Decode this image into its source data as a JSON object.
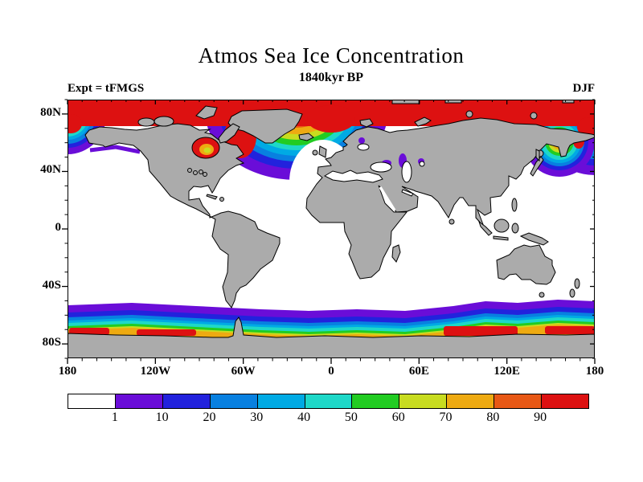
{
  "header": {
    "title": "Atmos Sea Ice Concentration",
    "subtitle": "1840kyr BP",
    "experiment_label": "Expt = tFMGS",
    "season_label": "DJF"
  },
  "chart_data": {
    "type": "heatmap",
    "subtype": "filled-contour world map, equirectangular projection",
    "title": "Atmos Sea Ice Concentration",
    "subtitle": "1840kyr BP",
    "experiment": "Expt = tFMGS",
    "season": "DJF",
    "variable": "sea ice concentration",
    "x_axis": {
      "tick_labels": [
        "180",
        "120W",
        "60W",
        "0",
        "60E",
        "120E",
        "180"
      ],
      "tick_lons": [
        -180,
        -120,
        -60,
        0,
        60,
        120,
        180
      ],
      "minor_step_deg": 10,
      "range_deg": [
        -180,
        180
      ]
    },
    "y_axis": {
      "tick_labels": [
        "80N",
        "40N",
        "0",
        "40S",
        "80S"
      ],
      "tick_lats": [
        80,
        40,
        0,
        -40,
        -80
      ],
      "minor_step_deg": 10,
      "range_deg": [
        -90,
        90
      ]
    },
    "colorbar": {
      "levels": [
        1,
        10,
        20,
        30,
        40,
        50,
        60,
        70,
        80,
        90
      ],
      "label_values": [
        "1",
        "10",
        "20",
        "30",
        "40",
        "50",
        "60",
        "70",
        "80",
        "90"
      ],
      "colors": [
        "#ffffff",
        "#6a0dd8",
        "#2222dd",
        "#0880e0",
        "#00aae4",
        "#1ed8c8",
        "#22cc22",
        "#c8dc20",
        "#eeaa11",
        "#e85815",
        "#dd1111"
      ]
    },
    "map_colors": {
      "land": "#ababab",
      "coastline": "#000000",
      "ocean": "#ffffff"
    },
    "regions": [
      {
        "name": "Arctic Ocean ice cap",
        "extent": "~68N-90N all longitudes",
        "value": ">90"
      },
      {
        "name": "Hudson Bay",
        "value": "60->90, lower (60-70) in its center"
      },
      {
        "name": "Labrador Sea / Davis Strait marginal ice zone",
        "value": "90->1 gradient seaward"
      },
      {
        "name": "Greenland-Iceland-Norwegian Seas marginal ice zone",
        "value": "90->1 gradient seaward"
      },
      {
        "name": "Bering Sea marginal ice zone (map edges, 180)",
        "value": "90->1 gradient seaward"
      },
      {
        "name": "Sea of Okhotsk / Kamchatka / NW Pacific marginal ice zone",
        "value": "90->1 gradient seaward"
      },
      {
        "name": "North Caspian, Black Sea, Baltic margins",
        "value": "1-20 patches"
      },
      {
        "name": "Circumpolar Southern Ocean band",
        "extent": "~57S-68S",
        "value": "1 at northern edge increasing to 80-90+ at Antarctic coast"
      },
      {
        "name": "Mid- and low-latitude oceans",
        "value": "0 (ice-free, white)"
      }
    ]
  }
}
